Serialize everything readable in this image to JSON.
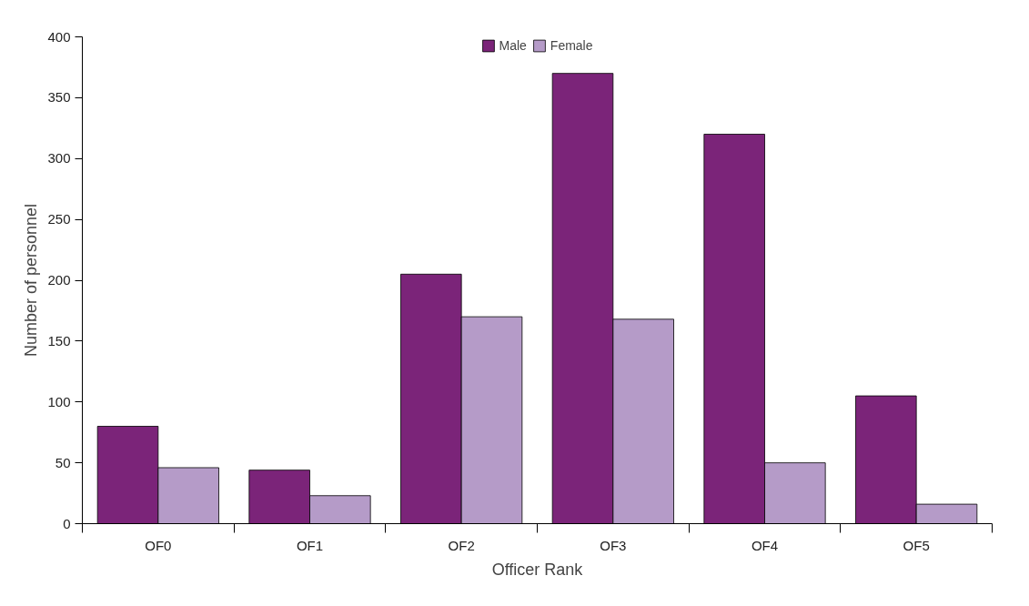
{
  "chart_data": {
    "type": "bar",
    "xlabel": "Officer Rank",
    "ylabel": "Number of personnel",
    "categories": [
      "OF0",
      "OF1",
      "OF2",
      "OF3",
      "OF4",
      "OF5"
    ],
    "series": [
      {
        "name": "Male",
        "color": "#7b2479",
        "values": [
          80,
          44,
          205,
          370,
          320,
          105
        ]
      },
      {
        "name": "Female",
        "color": "#b59bc8",
        "values": [
          46,
          23,
          170,
          168,
          50,
          16
        ]
      }
    ],
    "ylim": [
      0,
      400
    ],
    "yticks": [
      0,
      50,
      100,
      150,
      200,
      250,
      300,
      350,
      400
    ],
    "grid": false,
    "legend": "top"
  }
}
